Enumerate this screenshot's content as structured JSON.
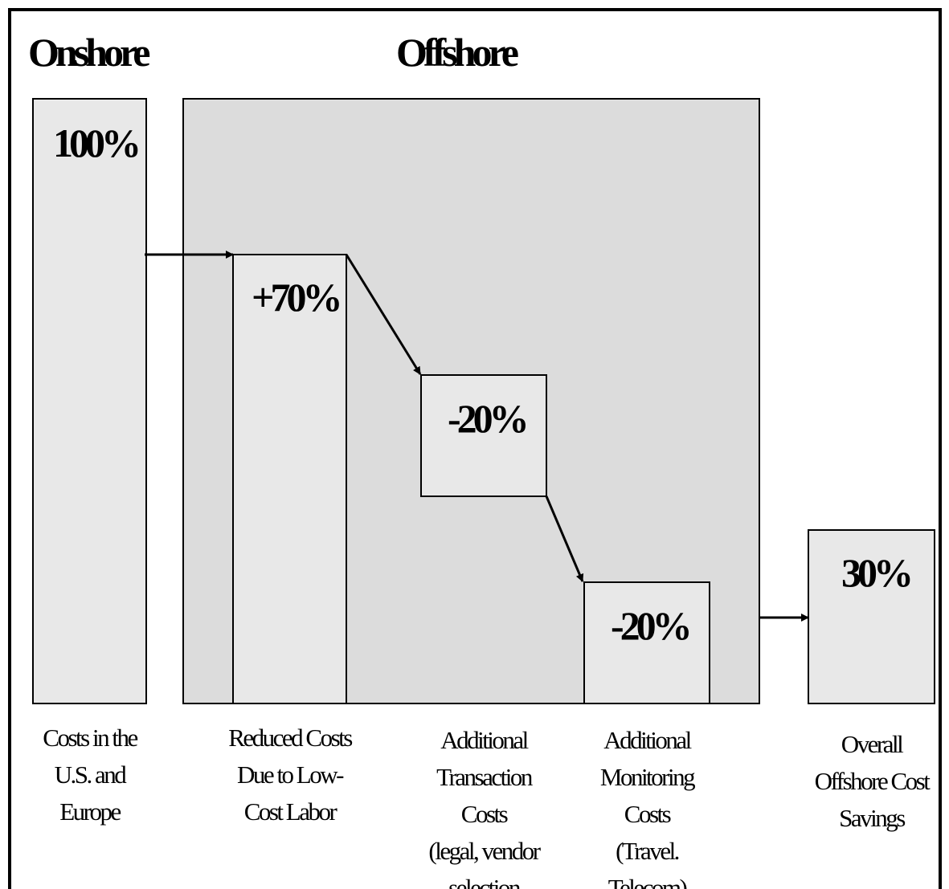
{
  "header": {
    "onshore": "Onshore",
    "offshore": "Offshore"
  },
  "steps": [
    {
      "value_label": "100%",
      "caption": [
        "Costs in the",
        "U.S. and",
        "Europe"
      ]
    },
    {
      "value_label": "+70%",
      "caption": [
        "Reduced Costs",
        "Due to Low-",
        "Cost Labor"
      ]
    },
    {
      "value_label": "-20%",
      "caption": [
        "Additional",
        "Transaction",
        "Costs",
        "(legal, vendor",
        "selection"
      ]
    },
    {
      "value_label": "-20%",
      "caption": [
        "Additional",
        "Monitoring",
        "Costs",
        "(Travel.",
        "Telecom)"
      ]
    },
    {
      "value_label": "30%",
      "caption": [
        "Overall",
        "Offshore Cost",
        "Savings"
      ]
    }
  ]
}
